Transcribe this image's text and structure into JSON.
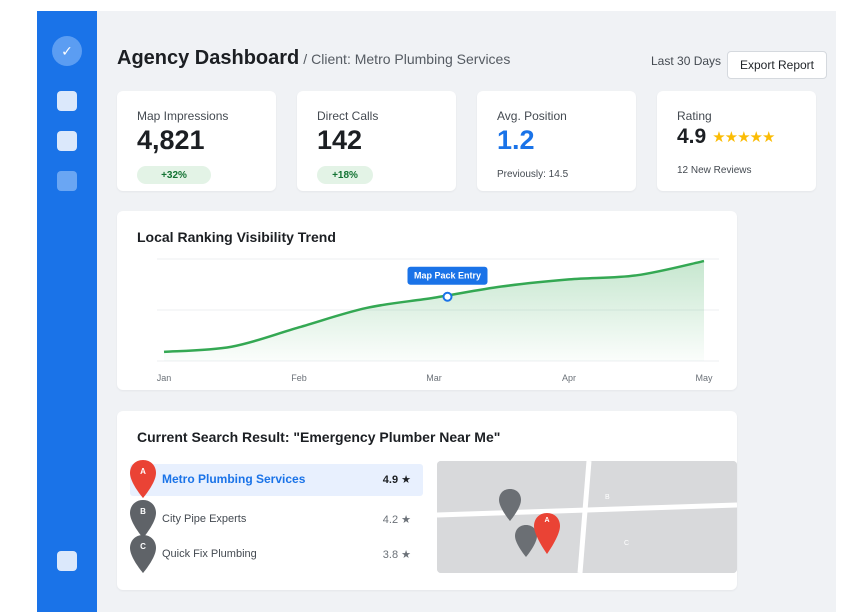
{
  "sidebar": {
    "items": [
      {
        "name": "check",
        "icon": "check-icon",
        "active": true
      },
      {
        "name": "item-1",
        "icon": "square-icon"
      },
      {
        "name": "item-2",
        "icon": "square-icon"
      },
      {
        "name": "item-3",
        "icon": "square-icon"
      },
      {
        "name": "item-4",
        "icon": "square-icon"
      }
    ],
    "check_glyph": "✓"
  },
  "header": {
    "title": "Agency Dashboard",
    "separator": "/",
    "client": "Client: Metro Plumbing Services",
    "date_range": "Last 30 Days",
    "export_label": "Export Report"
  },
  "stats": {
    "impressions": {
      "label": "Map Impressions",
      "value": "4,821",
      "change": "+32%"
    },
    "calls": {
      "label": "Direct Calls",
      "value": "142",
      "change": "+18%"
    },
    "position": {
      "label": "Avg. Position",
      "value": "1.2",
      "previous": "Previously: 14.5"
    },
    "rating": {
      "label": "Rating",
      "value": "4.9",
      "stars": "★★★★★",
      "reviews": "12 New Reviews"
    }
  },
  "trend": {
    "title": "Local Ranking Visibility Trend",
    "annotation": "Map Pack Entry"
  },
  "chart_data": {
    "type": "area",
    "title": "Local Ranking Visibility Trend",
    "categories": [
      "Jan",
      "Feb",
      "Mar",
      "Apr",
      "May"
    ],
    "x": [
      0,
      0.5,
      1,
      1.5,
      2,
      2.5,
      3,
      3.5,
      4
    ],
    "values": [
      9,
      14,
      33,
      52,
      62,
      73,
      80,
      84,
      98
    ],
    "ylim": [
      0,
      100
    ],
    "annotation": {
      "label": "Map Pack Entry",
      "x": 2.1,
      "y": 63
    },
    "grid": true,
    "color": "#34a853"
  },
  "search": {
    "title": "Current Search Result: \"Emergency Plumber Near Me\"",
    "results": [
      {
        "letter": "A",
        "name": "Metro Plumbing Services",
        "rating": "4.9 ★",
        "color": "#ea4335"
      },
      {
        "letter": "B",
        "name": "City Pipe Experts",
        "rating": "4.2 ★",
        "color": "#5f6368"
      },
      {
        "letter": "C",
        "name": "Quick Fix Plumbing",
        "rating": "3.8 ★",
        "color": "#5f6368"
      }
    ],
    "map": {
      "pin_a": "A",
      "label_b": "B",
      "label_c": "C"
    }
  },
  "colors": {
    "accent": "#1a73e8",
    "positive": "#137333",
    "pin_primary": "#ea4335",
    "pin_other": "#5f6368",
    "star": "#fbbc04"
  }
}
